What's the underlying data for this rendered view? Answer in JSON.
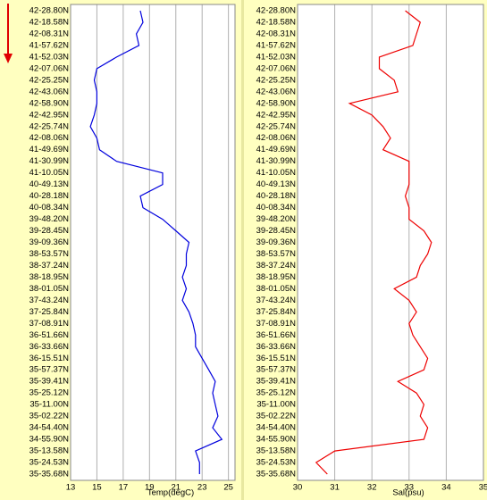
{
  "chart_data": [
    {
      "type": "line",
      "xlabel": "Temp(degC)",
      "color": "#0000dd",
      "categories": [
        "42-28.80N",
        "42-18.58N",
        "42-08.31N",
        "41-57.62N",
        "41-52.03N",
        "42-07.06N",
        "42-25.25N",
        "42-43.06N",
        "42-58.90N",
        "42-42.95N",
        "42-25.74N",
        "42-08.06N",
        "41-49.69N",
        "41-30.99N",
        "41-10.05N",
        "40-49.13N",
        "40-28.18N",
        "40-08.34N",
        "39-48.20N",
        "39-28.45N",
        "39-09.36N",
        "38-53.57N",
        "38-37.24N",
        "38-18.95N",
        "38-01.05N",
        "37-43.24N",
        "37-25.84N",
        "37-08.91N",
        "36-51.66N",
        "36-33.66N",
        "36-15.51N",
        "35-57.37N",
        "35-39.41N",
        "35-25.12N",
        "35-11.00N",
        "35-02.22N",
        "34-54.40N",
        "34-55.90N",
        "35-13.58N",
        "35-24.53N",
        "35-35.68N"
      ],
      "values": [
        18.3,
        18.5,
        18.0,
        18.2,
        16.5,
        15.0,
        14.8,
        15.0,
        15.0,
        14.8,
        14.5,
        15.0,
        15.2,
        16.5,
        20.0,
        20.0,
        18.3,
        18.5,
        20.0,
        21.0,
        22.0,
        21.8,
        21.8,
        21.5,
        21.8,
        21.5,
        22.0,
        22.3,
        22.5,
        22.5,
        23.0,
        23.5,
        24.0,
        23.8,
        24.0,
        24.2,
        23.8,
        24.5,
        22.5,
        22.8,
        22.8
      ],
      "xlim": [
        13,
        25.5
      ],
      "xticks": [
        13,
        15,
        17,
        19,
        21,
        23,
        25
      ],
      "grid": true
    },
    {
      "type": "line",
      "xlabel": "Sal(psu)",
      "color": "#ee0000",
      "categories": [
        "42-28.80N",
        "42-18.58N",
        "42-08.31N",
        "41-57.62N",
        "41-52.03N",
        "42-07.06N",
        "42-25.25N",
        "42-43.06N",
        "42-58.90N",
        "42-42.95N",
        "42-25.74N",
        "42-08.06N",
        "41-49.69N",
        "41-30.99N",
        "41-10.05N",
        "40-49.13N",
        "40-28.18N",
        "40-08.34N",
        "39-48.20N",
        "39-28.45N",
        "39-09.36N",
        "38-53.57N",
        "38-37.24N",
        "38-18.95N",
        "38-01.05N",
        "37-43.24N",
        "37-25.84N",
        "37-08.91N",
        "36-51.66N",
        "36-33.66N",
        "36-15.51N",
        "35-57.37N",
        "35-39.41N",
        "35-25.12N",
        "35-11.00N",
        "35-02.22N",
        "34-54.40N",
        "34-55.90N",
        "35-13.58N",
        "35-24.53N",
        "35-35.68N"
      ],
      "values": [
        32.9,
        33.3,
        33.2,
        33.1,
        32.2,
        32.2,
        32.6,
        32.7,
        31.4,
        32.0,
        32.3,
        32.5,
        32.3,
        33.0,
        33.0,
        33.0,
        32.9,
        33.0,
        33.0,
        33.4,
        33.6,
        33.5,
        33.3,
        33.2,
        32.6,
        33.0,
        33.2,
        33.0,
        33.1,
        33.3,
        33.5,
        33.4,
        32.7,
        33.2,
        33.4,
        33.3,
        33.5,
        33.4,
        31.0,
        30.5,
        30.8
      ],
      "xlim": [
        30,
        35
      ],
      "xticks": [
        30,
        31,
        32,
        33,
        34,
        35
      ],
      "grid": true
    }
  ]
}
